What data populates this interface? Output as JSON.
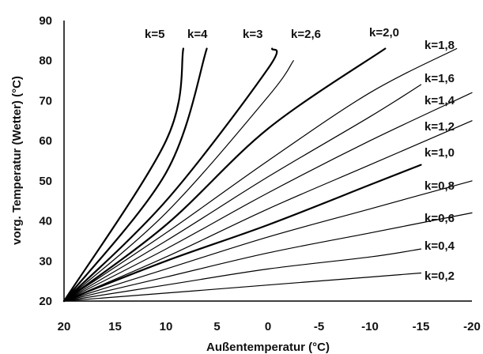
{
  "chart_data": {
    "type": "line",
    "xlabel": "Außentemperatur (°C)",
    "ylabel": "vorg. Temperatur (Wetter)   (°C)",
    "xlim": [
      20,
      -20
    ],
    "ylim": [
      20,
      90
    ],
    "xticks": [
      "20",
      "15",
      "10",
      "5",
      "0",
      "-5",
      "-10",
      "-15",
      "-20"
    ],
    "yticks": [
      "20",
      "30",
      "40",
      "50",
      "60",
      "70",
      "80",
      "90"
    ],
    "grid": false,
    "series": [
      {
        "name": "k=5",
        "x": [
          20,
          10,
          8.3
        ],
        "y": [
          20,
          60,
          83
        ]
      },
      {
        "name": "k=4",
        "x": [
          20,
          10,
          6
        ],
        "y": [
          20,
          52,
          83
        ]
      },
      {
        "name": "k=3",
        "x": [
          20,
          10,
          0,
          -0.4
        ],
        "y": [
          20,
          45,
          78,
          83
        ]
      },
      {
        "name": "k=2,6",
        "x": [
          20,
          10,
          0,
          -2.5
        ],
        "y": [
          20,
          42,
          71,
          80
        ]
      },
      {
        "name": "k=2,0",
        "x": [
          20,
          10,
          0,
          -11.5
        ],
        "y": [
          20,
          39,
          63,
          83
        ]
      },
      {
        "name": "k=1,8",
        "x": [
          20,
          10,
          0,
          -10,
          -18.5
        ],
        "y": [
          20,
          37,
          55,
          72,
          83
        ]
      },
      {
        "name": "k=1,6",
        "x": [
          20,
          10,
          0,
          -10,
          -15
        ],
        "y": [
          20,
          35,
          51,
          66,
          74
        ]
      },
      {
        "name": "k=1,4",
        "x": [
          20,
          10,
          0,
          -10,
          -20
        ],
        "y": [
          20,
          33,
          47,
          60,
          72
        ]
      },
      {
        "name": "k=1,2",
        "x": [
          20,
          10,
          0,
          -10,
          -20
        ],
        "y": [
          20,
          31,
          43,
          54,
          65
        ]
      },
      {
        "name": "k=1,0",
        "x": [
          20,
          10,
          0,
          -10,
          -15
        ],
        "y": [
          20,
          30,
          39,
          49,
          54
        ]
      },
      {
        "name": "k=0,8",
        "x": [
          20,
          10,
          0,
          -10,
          -20
        ],
        "y": [
          20,
          28,
          36,
          43,
          50
        ]
      },
      {
        "name": "k=0,6",
        "x": [
          20,
          10,
          0,
          -10,
          -20
        ],
        "y": [
          20,
          26,
          32,
          37,
          42
        ]
      },
      {
        "name": "k=0,4",
        "x": [
          20,
          10,
          0,
          -10,
          -15
        ],
        "y": [
          20,
          24,
          28,
          31,
          33
        ]
      },
      {
        "name": "k=0,2",
        "x": [
          20,
          10,
          0,
          -10,
          -15
        ],
        "y": [
          20,
          22,
          24,
          26,
          27
        ]
      }
    ]
  }
}
